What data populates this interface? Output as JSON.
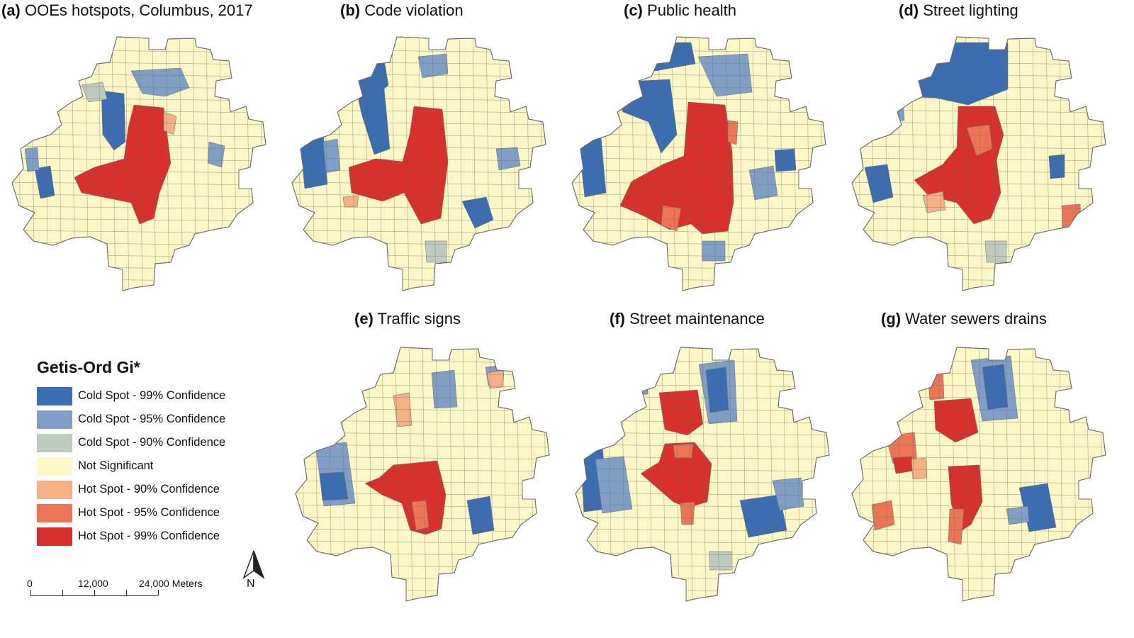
{
  "panels": [
    {
      "letter": "(a)",
      "title": "OOEs hotspots, Columbus, 2017"
    },
    {
      "letter": "(b)",
      "title": "Code violation"
    },
    {
      "letter": "(c)",
      "title": "Public health"
    },
    {
      "letter": "(d)",
      "title": "Street lighting"
    },
    {
      "letter": "(e)",
      "title": "Traffic signs"
    },
    {
      "letter": "(f)",
      "title": "Street maintenance"
    },
    {
      "letter": "(g)",
      "title": "Water sewers drains"
    }
  ],
  "legend": {
    "title": "Getis-Ord Gi*",
    "items": [
      {
        "label": "Cold Spot - 99% Confidence",
        "color": "#3b6db3"
      },
      {
        "label": "Cold Spot - 95% Confidence",
        "color": "#7f9fc6"
      },
      {
        "label": "Cold Spot - 90% Confidence",
        "color": "#bfcbbf"
      },
      {
        "label": "Not Significant",
        "color": "#fbf8c5"
      },
      {
        "label": "Hot Spot - 90% Confidence",
        "color": "#f4b183"
      },
      {
        "label": "Hot Spot - 95% Confidence",
        "color": "#ec7454"
      },
      {
        "label": "Hot Spot - 99% Confidence",
        "color": "#d9302c"
      }
    ]
  },
  "scale_bar": {
    "labels": [
      "0",
      "12,000",
      "24,000 Meters"
    ]
  },
  "north_arrow": {
    "label": "N"
  },
  "colors": {
    "background": "#ffffff",
    "boundary": "#6b6b6b"
  }
}
